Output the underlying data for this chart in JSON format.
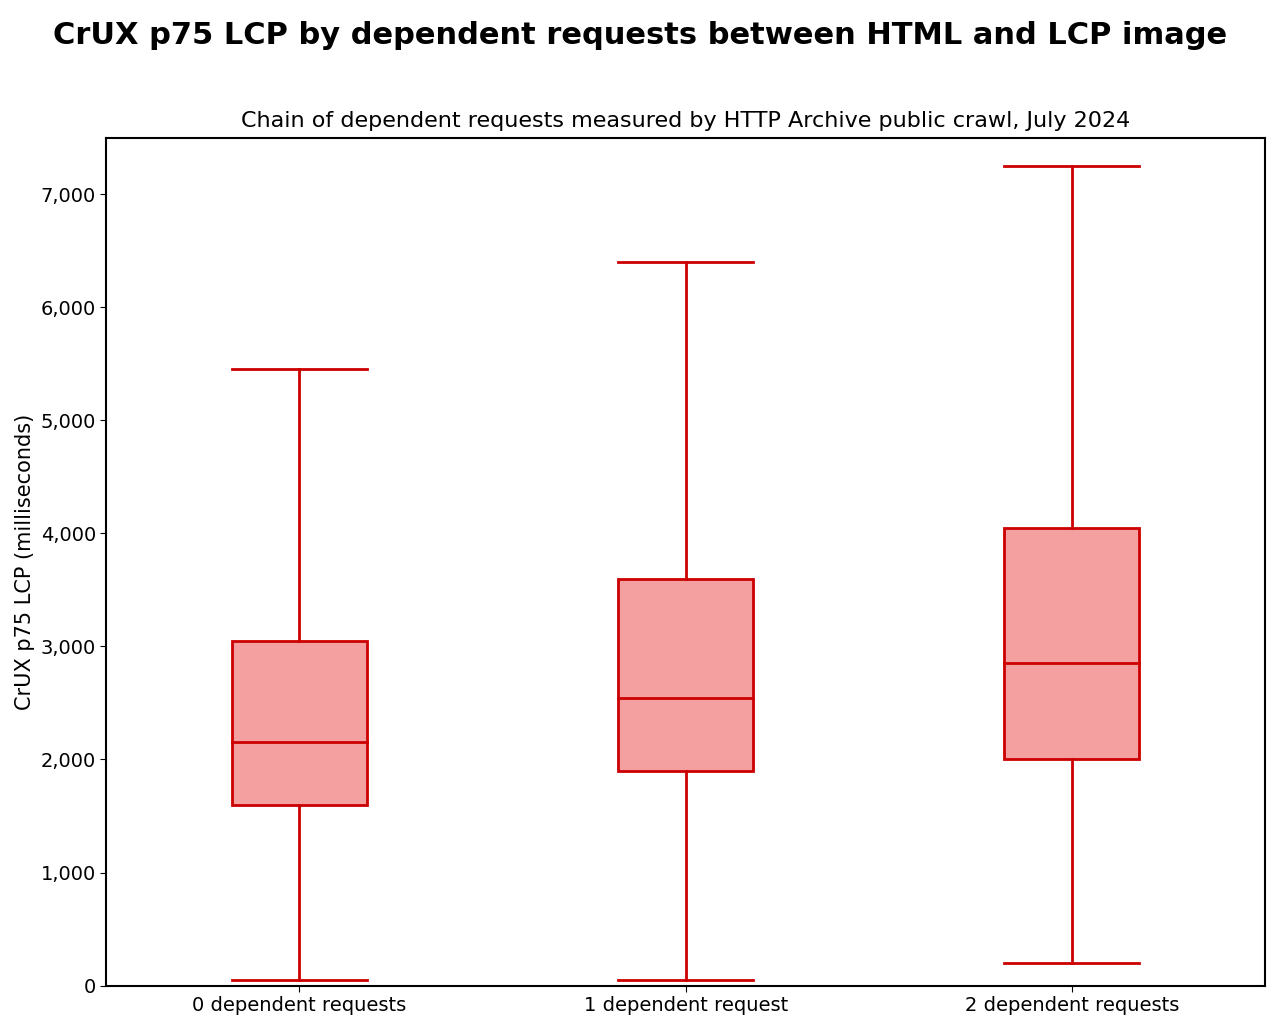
{
  "title": "CrUX p75 LCP by dependent requests between HTML and LCP image",
  "subtitle": "Chain of dependent requests measured by HTTP Archive public crawl, July 2024",
  "ylabel": "CrUX p75 LCP (milliseconds)",
  "categories": [
    "0 dependent requests",
    "1 dependent request",
    "2 dependent requests"
  ],
  "boxes": [
    {
      "whisker_low": 50,
      "q1": 1600,
      "median": 2150,
      "q3": 3050,
      "whisker_high": 5450
    },
    {
      "whisker_low": 50,
      "q1": 1900,
      "median": 2540,
      "q3": 3600,
      "whisker_high": 6400
    },
    {
      "whisker_low": 200,
      "q1": 2000,
      "median": 2850,
      "q3": 4050,
      "whisker_high": 7250
    }
  ],
  "box_color": "#f4a0a0",
  "line_color": "#cc0000",
  "ylim": [
    0,
    7500
  ],
  "yticks": [
    0,
    1000,
    2000,
    3000,
    4000,
    5000,
    6000,
    7000
  ],
  "box_width": 0.35,
  "linewidth": 2.0,
  "title_fontsize": 22,
  "subtitle_fontsize": 16,
  "ylabel_fontsize": 15,
  "tick_fontsize": 14,
  "background_color": "#ffffff"
}
